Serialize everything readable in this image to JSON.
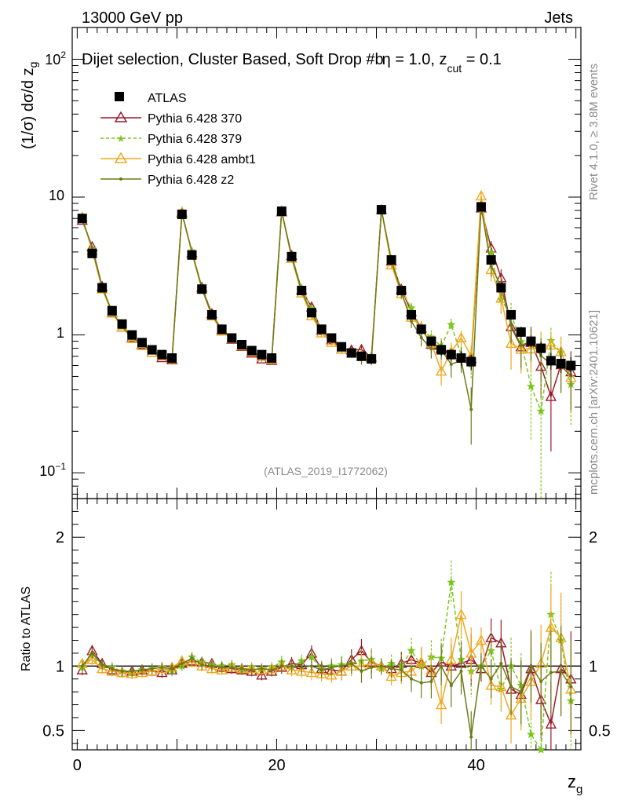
{
  "header": {
    "left": "13000 GeV pp",
    "right": "Jets"
  },
  "plot_title": {
    "main": "Dijet selection, Cluster Based, Soft Drop #b",
    "eta_part": "η = 1.0, z",
    "cut_sub": "cut",
    "tail": " = 0.1"
  },
  "side_labels": {
    "rivet": "Rivet 4.1.0, ≥ 3.8M events",
    "mcplots": "mcplots.cern.ch [arXiv:2401.10621]"
  },
  "analysis_id": "(ATLAS_2019_I1772062)",
  "y_label_main": {
    "prefix": "(1/σ) dσ/d z",
    "sub": "g"
  },
  "y_label_ratio": "Ratio to ATLAS",
  "x_label": {
    "base": "z",
    "sub": "g"
  },
  "colors": {
    "data": "#000000",
    "pythia370": "#9b1b2a",
    "pythia379": "#7ac61f",
    "ambt1": "#f0a81e",
    "z2": "#6e7a17"
  },
  "chart_data": {
    "type": "line",
    "xlim": [
      -0.5,
      50.5
    ],
    "ylim_main": [
      0.065,
      170
    ],
    "ylim_ratio": [
      0.35,
      2.3
    ],
    "ylog_main": true,
    "x_ticks_major": [
      0,
      20,
      40
    ],
    "x_tick_labels": [
      "0",
      "20",
      "40"
    ],
    "y_ticks_main": [
      0.1,
      1,
      10,
      100
    ],
    "y_tick_labels_main": {
      "tenth": {
        "base": "10",
        "exp": "−1"
      },
      "one": "1",
      "ten": "10",
      "hundred": {
        "base": "10",
        "exp": "2"
      }
    },
    "y_ticks_ratio": [
      0.5,
      1,
      2
    ],
    "y_tick_labels_ratio": [
      "0.5",
      "1",
      "2"
    ],
    "legend_position": "top-left",
    "data": {
      "name": "ATLAS",
      "x": [
        0.5,
        1.5,
        2.5,
        3.5,
        4.5,
        5.5,
        6.5,
        7.5,
        8.5,
        9.5,
        10.5,
        11.5,
        12.5,
        13.5,
        14.5,
        15.5,
        16.5,
        17.5,
        18.5,
        19.5,
        20.5,
        21.5,
        22.5,
        23.5,
        24.5,
        25.5,
        26.5,
        27.5,
        28.5,
        29.5,
        30.5,
        31.5,
        32.5,
        33.5,
        34.5,
        35.5,
        36.5,
        37.5,
        38.5,
        39.5,
        40.5,
        41.5,
        42.5,
        43.5,
        44.5,
        45.5,
        46.5,
        47.5,
        48.5,
        49.5
      ],
      "values": [
        7.0,
        3.9,
        2.2,
        1.5,
        1.2,
        1.0,
        0.88,
        0.78,
        0.72,
        0.68,
        7.5,
        3.8,
        2.15,
        1.4,
        1.1,
        0.95,
        0.85,
        0.77,
        0.72,
        0.68,
        7.9,
        3.7,
        2.1,
        1.45,
        1.1,
        0.95,
        0.82,
        0.74,
        0.7,
        0.67,
        8.1,
        3.5,
        2.1,
        1.4,
        1.1,
        0.9,
        0.78,
        0.72,
        0.68,
        0.64,
        8.5,
        3.5,
        2.2,
        1.4,
        1.05,
        0.9,
        0.8,
        0.65,
        0.62,
        0.6
      ],
      "errors": [
        0.3,
        0.15,
        0.08,
        0.06,
        0.05,
        0.04,
        0.04,
        0.04,
        0.04,
        0.04,
        0.3,
        0.15,
        0.08,
        0.06,
        0.05,
        0.04,
        0.04,
        0.04,
        0.04,
        0.04,
        0.3,
        0.15,
        0.08,
        0.06,
        0.05,
        0.05,
        0.05,
        0.05,
        0.05,
        0.05,
        0.35,
        0.18,
        0.1,
        0.08,
        0.07,
        0.07,
        0.07,
        0.07,
        0.08,
        0.08,
        0.4,
        0.2,
        0.12,
        0.1,
        0.09,
        0.09,
        0.09,
        0.09,
        0.09,
        0.09
      ]
    },
    "series": [
      {
        "name": "Pythia 6.428 370",
        "color": "#9b1b2a",
        "dashed": false,
        "marker": "triangle-open",
        "ratio": [
          0.97,
          1.12,
          1.02,
          0.97,
          0.95,
          0.96,
          0.97,
          0.96,
          0.95,
          0.97,
          1.02,
          1.04,
          1.03,
          1.02,
          0.99,
          0.98,
          0.97,
          0.96,
          0.93,
          0.96,
          0.99,
          1.02,
          1.01,
          1.1,
          0.98,
          0.97,
          0.96,
          1.05,
          1.12,
          1.03,
          1.0,
          0.98,
          1.02,
          1.05,
          1.02,
          0.95,
          1.03,
          1.0,
          1.02,
          1.05,
          0.98,
          1.22,
          1.18,
          0.82,
          0.78,
          0.98,
          0.74,
          0.55,
          0.98,
          0.9
        ],
        "ratio_err": [
          0.04,
          0.04,
          0.04,
          0.04,
          0.04,
          0.04,
          0.04,
          0.04,
          0.04,
          0.04,
          0.04,
          0.04,
          0.04,
          0.04,
          0.04,
          0.04,
          0.04,
          0.04,
          0.04,
          0.04,
          0.05,
          0.05,
          0.05,
          0.06,
          0.06,
          0.06,
          0.07,
          0.08,
          0.09,
          0.09,
          0.06,
          0.07,
          0.09,
          0.1,
          0.12,
          0.13,
          0.15,
          0.17,
          0.18,
          0.2,
          0.1,
          0.15,
          0.18,
          0.22,
          0.25,
          0.28,
          0.3,
          0.33,
          0.35,
          0.37
        ]
      },
      {
        "name": "Pythia 6.428 379",
        "color": "#7ac61f",
        "dashed": true,
        "marker": "star",
        "ratio": [
          0.99,
          1.08,
          1.0,
          0.99,
          0.96,
          0.95,
          0.97,
          0.98,
          0.99,
          0.96,
          1.0,
          1.07,
          1.03,
          1.01,
          1.0,
          1.01,
          0.97,
          0.99,
          0.98,
          0.99,
          1.03,
          0.99,
          1.04,
          1.07,
          0.98,
          1.0,
          1.01,
          1.02,
          1.04,
          1.05,
          0.98,
          1.02,
          1.0,
          1.12,
          1.0,
          1.07,
          1.06,
          1.65,
          1.05,
          0.96,
          1.0,
          1.12,
          0.82,
          1.0,
          0.85,
          0.47,
          0.35,
          1.4,
          1.2,
          0.73
        ],
        "ratio_err": [
          0.04,
          0.04,
          0.04,
          0.04,
          0.04,
          0.04,
          0.04,
          0.04,
          0.04,
          0.04,
          0.04,
          0.04,
          0.04,
          0.04,
          0.04,
          0.04,
          0.04,
          0.04,
          0.04,
          0.04,
          0.05,
          0.05,
          0.05,
          0.06,
          0.06,
          0.06,
          0.07,
          0.08,
          0.09,
          0.09,
          0.06,
          0.07,
          0.09,
          0.1,
          0.12,
          0.13,
          0.15,
          0.17,
          0.18,
          0.2,
          0.1,
          0.15,
          0.18,
          0.22,
          0.25,
          0.28,
          0.3,
          0.33,
          0.35,
          0.37
        ]
      },
      {
        "name": "Pythia 6.428 ambt1",
        "color": "#f0a81e",
        "dashed": false,
        "marker": "triangle-open",
        "ratio": [
          1.02,
          1.05,
          0.98,
          0.96,
          0.95,
          0.94,
          0.95,
          0.96,
          0.98,
          0.99,
          1.04,
          1.03,
          1.0,
          0.98,
          0.97,
          0.99,
          0.98,
          0.98,
          0.97,
          0.98,
          1.0,
          0.97,
          0.96,
          0.95,
          0.94,
          0.93,
          0.96,
          1.0,
          1.0,
          1.02,
          1.0,
          0.92,
          0.95,
          0.96,
          1.03,
          0.97,
          0.7,
          1.05,
          1.4,
          1.1,
          1.2,
          0.85,
          0.84,
          0.62,
          0.75,
          0.88,
          1.02,
          1.3,
          1.22,
          0.82
        ],
        "ratio_err": [
          0.04,
          0.04,
          0.04,
          0.04,
          0.04,
          0.04,
          0.04,
          0.04,
          0.04,
          0.04,
          0.04,
          0.04,
          0.04,
          0.04,
          0.04,
          0.04,
          0.04,
          0.04,
          0.04,
          0.04,
          0.05,
          0.05,
          0.05,
          0.06,
          0.06,
          0.06,
          0.07,
          0.08,
          0.09,
          0.09,
          0.06,
          0.07,
          0.09,
          0.1,
          0.12,
          0.13,
          0.15,
          0.17,
          0.18,
          0.2,
          0.1,
          0.15,
          0.18,
          0.22,
          0.25,
          0.28,
          0.3,
          0.33,
          0.35,
          0.37
        ]
      },
      {
        "name": "Pythia 6.428 z2",
        "color": "#6e7a17",
        "dashed": false,
        "marker": "dot",
        "ratio": [
          1.0,
          1.1,
          1.01,
          0.98,
          0.96,
          0.96,
          0.97,
          0.98,
          0.99,
          0.98,
          1.02,
          1.06,
          1.01,
          1.0,
          0.99,
          0.99,
          0.98,
          0.97,
          0.98,
          0.97,
          1.0,
          1.0,
          0.99,
          1.0,
          0.97,
          0.99,
          1.0,
          1.02,
          0.96,
          0.99,
          1.0,
          0.98,
          0.97,
          0.9,
          0.87,
          0.88,
          1.0,
          0.85,
          0.96,
          0.45,
          1.0,
          0.9,
          1.02,
          0.84,
          0.8,
          1.0,
          0.88,
          0.95,
          0.96,
          0.84
        ],
        "ratio_err": [
          0.04,
          0.04,
          0.04,
          0.04,
          0.04,
          0.04,
          0.04,
          0.04,
          0.04,
          0.04,
          0.04,
          0.04,
          0.04,
          0.04,
          0.04,
          0.04,
          0.04,
          0.04,
          0.04,
          0.04,
          0.05,
          0.05,
          0.05,
          0.06,
          0.06,
          0.06,
          0.07,
          0.08,
          0.09,
          0.09,
          0.06,
          0.07,
          0.09,
          0.1,
          0.12,
          0.13,
          0.15,
          0.17,
          0.18,
          0.2,
          0.1,
          0.15,
          0.18,
          0.22,
          0.25,
          0.28,
          0.3,
          0.33,
          0.35,
          0.37
        ]
      }
    ]
  }
}
